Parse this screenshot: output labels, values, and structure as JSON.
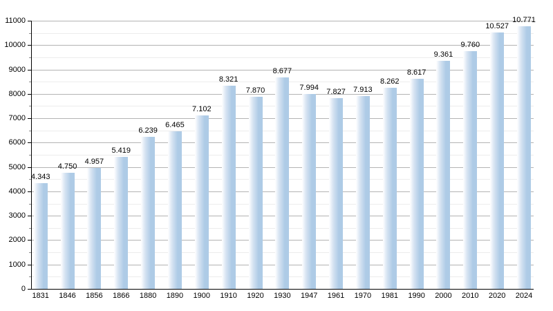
{
  "chart_data": {
    "type": "bar",
    "categories": [
      "1831",
      "1846",
      "1856",
      "1866",
      "1880",
      "1890",
      "1900",
      "1910",
      "1920",
      "1930",
      "1947",
      "1961",
      "1970",
      "1981",
      "1990",
      "2000",
      "2010",
      "2020",
      "2024"
    ],
    "values": [
      4343,
      4750,
      4957,
      5419,
      6239,
      6465,
      7102,
      8321,
      7870,
      8677,
      7994,
      7827,
      7913,
      8262,
      8617,
      9361,
      9760,
      10527,
      10771
    ],
    "value_labels": [
      "4.343",
      "4.750",
      "4.957",
      "5.419",
      "6.239",
      "6.465",
      "7.102",
      "8.321",
      "7.870",
      "8.677",
      "7.994",
      "7.827",
      "7.913",
      "8.262",
      "8.617",
      "9.361",
      "9.760",
      "10.527",
      "10.771"
    ],
    "title": "",
    "xlabel": "",
    "ylabel": "",
    "ylim": [
      0,
      11000
    ],
    "ytick_step": 1000,
    "ytick_minor_step": 500,
    "ytick_labels": [
      "0",
      "1000",
      "2000",
      "3000",
      "4000",
      "5000",
      "6000",
      "7000",
      "8000",
      "9000",
      "10000",
      "11000"
    ],
    "grid": true,
    "legend": "none",
    "colors": {
      "bar_main": "#aecbe6",
      "bar_gradient_start": "#ffffff",
      "bar_gradient_mid": "#d6e3f2",
      "gridline_major": "#b3b3b3",
      "gridline_minor": "#ececec",
      "axis": "#000000",
      "text": "#000000"
    }
  }
}
